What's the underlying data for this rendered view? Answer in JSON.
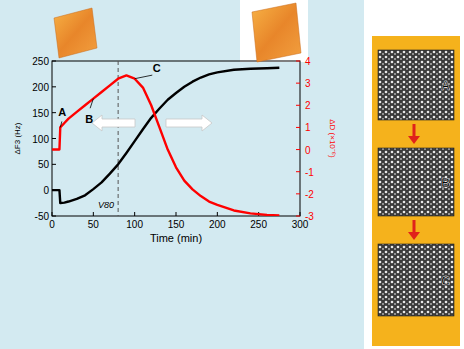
{
  "chart_data": {
    "type": "line",
    "xlabel": "Time (min)",
    "ylabel": "ΔF3 (Hz)",
    "y2label": "ΔD (×10⁻⁶)",
    "x": [
      0,
      9,
      10,
      15,
      20,
      30,
      40,
      50,
      60,
      70,
      80,
      90,
      100,
      110,
      120,
      130,
      140,
      150,
      160,
      170,
      180,
      190,
      200,
      220,
      240,
      260,
      275
    ],
    "series": [
      {
        "color": "#000000",
        "values": [
          0,
          0,
          -25,
          -24,
          -22,
          -17,
          -10,
          2,
          15,
          32,
          50,
          72,
          95,
          118,
          140,
          158,
          175,
          188,
          200,
          210,
          218,
          224,
          228,
          233,
          235,
          236,
          237
        ]
      },
      {
        "color": "#ff0000",
        "axis": "y2",
        "values": [
          0,
          0,
          1.0,
          1.2,
          1.4,
          1.7,
          2.0,
          2.3,
          2.6,
          2.9,
          3.2,
          3.35,
          3.2,
          2.8,
          2.0,
          1.0,
          0.0,
          -0.8,
          -1.4,
          -1.8,
          -2.1,
          -2.35,
          -2.5,
          -2.75,
          -2.88,
          -2.95,
          -2.98
        ]
      }
    ],
    "xlim": [
      0,
      300
    ],
    "xticks": [
      0,
      50,
      100,
      150,
      200,
      250,
      300
    ],
    "ylim": [
      -50,
      250
    ],
    "yticks": [
      -50,
      0,
      50,
      100,
      150,
      200,
      250
    ],
    "y2lim": [
      -3,
      4
    ],
    "y2ticks": [
      -3,
      -2,
      -1,
      0,
      1,
      2,
      3,
      4
    ],
    "grid": false,
    "annotations": [
      {
        "text": "A",
        "x": 10
      },
      {
        "text": "B",
        "x": 50
      },
      {
        "text": "C",
        "x": 100
      }
    ],
    "vline": {
      "text": "V80",
      "x": 80
    },
    "panel_labels": [
      "A",
      "B",
      "C"
    ]
  }
}
